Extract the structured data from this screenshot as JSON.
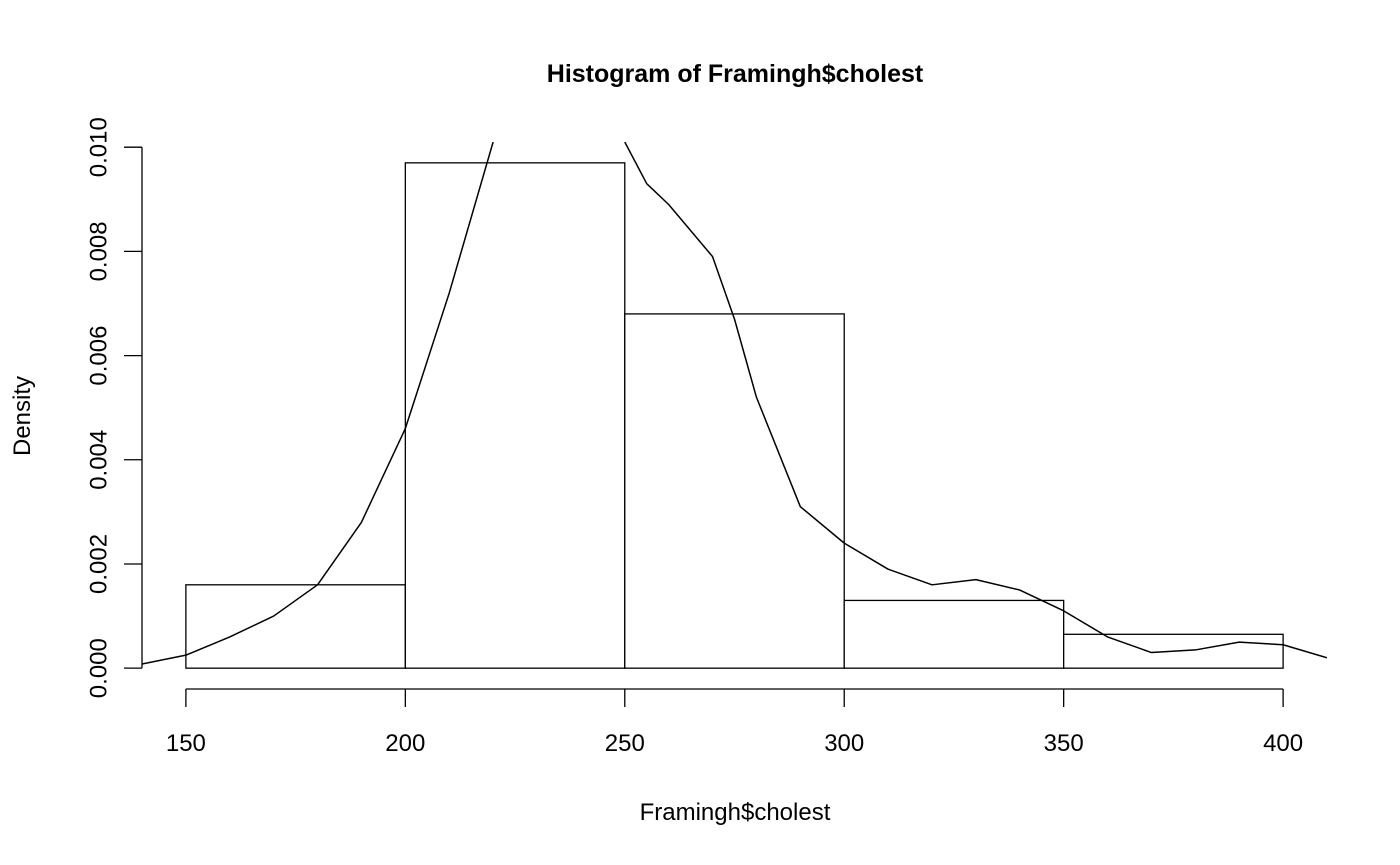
{
  "chart_data": {
    "type": "histogram",
    "title": "Histogram of Framingh$cholest",
    "x_label": "Framingh$cholest",
    "y_label": "Density",
    "bins": [
      150,
      200,
      250,
      300,
      350,
      400
    ],
    "counts": [
      0.0016,
      0.0097,
      0.0068,
      0.0013,
      0.00065
    ],
    "color": "#ffffff",
    "edge_color": "#000000",
    "density_curve": {
      "x": [
        140,
        150,
        160,
        170,
        180,
        190,
        200,
        210,
        220,
        230,
        240,
        250,
        255,
        260,
        270,
        275,
        280,
        290,
        300,
        310,
        320,
        330,
        340,
        350,
        360,
        370,
        380,
        390,
        400,
        410
      ],
      "values": [
        8e-05,
        0.00025,
        0.0006,
        0.001,
        0.0016,
        0.0028,
        0.0046,
        0.0072,
        0.0101,
        null,
        null,
        0.0101,
        0.0093,
        0.0089,
        0.0079,
        0.0067,
        0.0052,
        0.0031,
        0.0024,
        0.0019,
        0.0016,
        0.0017,
        0.0015,
        0.0011,
        0.0006,
        0.0003,
        0.00035,
        0.0005,
        0.00045,
        0.0002
      ],
      "color": "#000000"
    },
    "xlim": [
      140,
      410
    ],
    "ylim": [
      -0.0004,
      0.0101
    ],
    "xticks": [
      150,
      200,
      250,
      300,
      350,
      400
    ],
    "yticks": [
      {
        "value": 0,
        "label": "0.000"
      },
      {
        "value": 0.002,
        "label": "0.002"
      },
      {
        "value": 0.004,
        "label": "0.004"
      },
      {
        "value": 0.006,
        "label": "0.006"
      },
      {
        "value": 0.008,
        "label": "0.008"
      },
      {
        "value": 0.01,
        "label": "0.010"
      }
    ]
  }
}
